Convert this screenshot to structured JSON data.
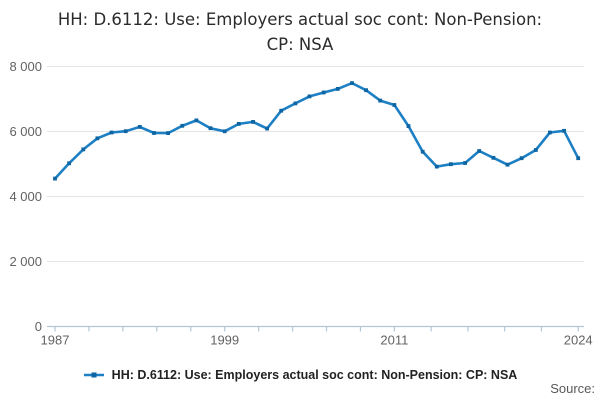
{
  "header": {
    "title_line1": "HH: D.6112: Use: Employers actual soc cont: Non-Pension:",
    "title_line2": "CP: NSA"
  },
  "legend": {
    "label": "HH: D.6112: Use: Employers actual soc cont: Non-Pension: CP: NSA"
  },
  "footer": {
    "source_label": "Source:"
  },
  "colors": {
    "line": "#1e80c4",
    "marker": "#0d66a3",
    "grid": "#e4e4e4",
    "axis": "#b5c6d3",
    "tick_text": "#636363",
    "title_text": "#2b2b2b",
    "legend_text": "#222222",
    "source_text": "#595959"
  },
  "chart_data": {
    "type": "line",
    "title": "HH: D.6112: Use: Employers actual soc cont: Non-Pension: CP: NSA",
    "xlabel": "",
    "ylabel": "",
    "grid": "horizontal",
    "legend_position": "bottom",
    "ylim": [
      0,
      8000
    ],
    "yticks": {
      "values": [
        0,
        2000,
        4000,
        6000,
        8000
      ],
      "labels": [
        "0",
        "2 000",
        "4 000",
        "6 000",
        "8 000"
      ]
    },
    "xticks": {
      "values": [
        1987,
        1999,
        2011,
        2024
      ],
      "labels": [
        "1987",
        "1999",
        "2011",
        "2024"
      ]
    },
    "x_minor_ticks_per_gap": 4,
    "x": [
      1987,
      1988,
      1989,
      1990,
      1991,
      1992,
      1993,
      1994,
      1995,
      1996,
      1997,
      1998,
      1999,
      2000,
      2001,
      2002,
      2003,
      2004,
      2005,
      2006,
      2007,
      2008,
      2009,
      2010,
      2011,
      2012,
      2013,
      2014,
      2015,
      2016,
      2017,
      2018,
      2019,
      2020,
      2021,
      2022,
      2023,
      2024
    ],
    "series": [
      {
        "name": "HH: D.6112: Use: Employers actual soc cont: Non-Pension: CP: NSA",
        "values": [
          4550,
          5020,
          5450,
          5790,
          5970,
          6010,
          6140,
          5955,
          5950,
          6175,
          6340,
          6100,
          6005,
          6235,
          6295,
          6090,
          6640,
          6865,
          7080,
          7200,
          7310,
          7490,
          7270,
          6950,
          6815,
          6165,
          5380,
          4920,
          4995,
          5030,
          5400,
          5190,
          4980,
          5180,
          5430,
          5970,
          6020,
          5180
        ]
      }
    ]
  }
}
